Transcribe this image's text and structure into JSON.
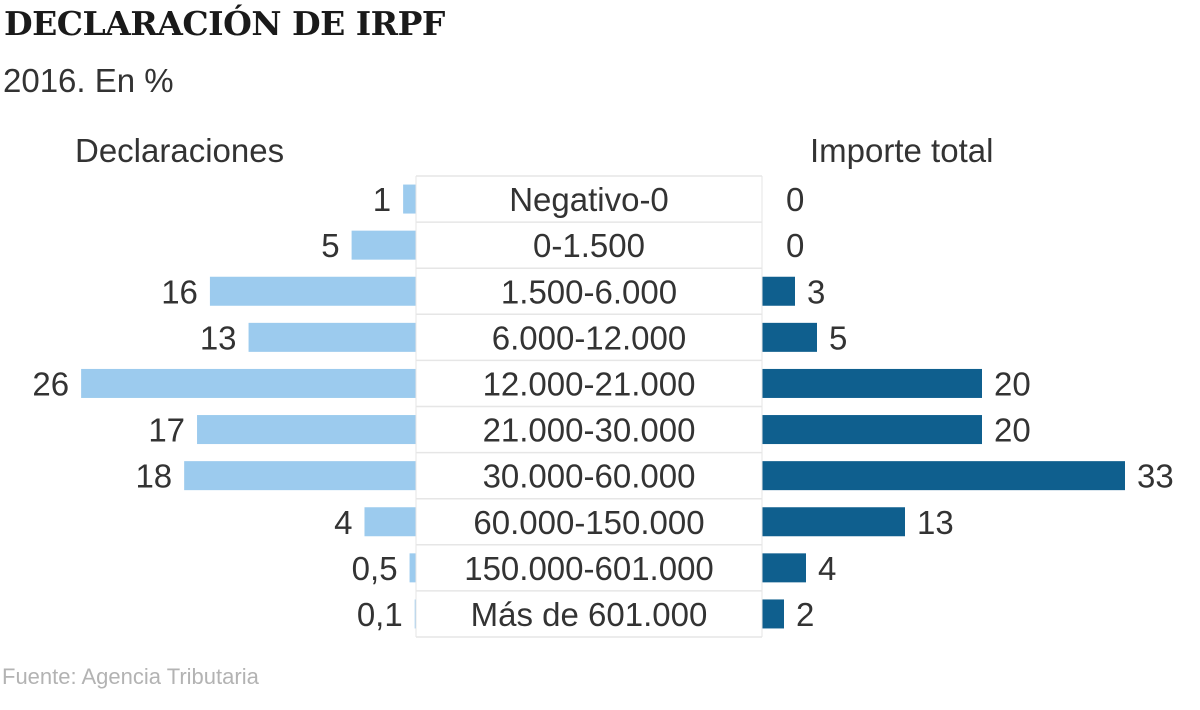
{
  "title": "DECLARACIÓN DE IRPF",
  "subtitle": "2016. En %",
  "source": "Fuente: Agencia Tributaria",
  "colors": {
    "left_bar": "#9ccbee",
    "right_bar": "#0f5f8e",
    "divider": "#e6e6e6"
  },
  "chart_data": {
    "type": "bar",
    "orientation": "horizontal-butterfly",
    "categories": [
      "Negativo-0",
      "0-1.500",
      "1.500-6.000",
      "6.000-12.000",
      "12.000-21.000",
      "21.000-30.000",
      "30.000-60.000",
      "60.000-150.000",
      "150.000-601.000",
      "Más de 601.000"
    ],
    "series": [
      {
        "name": "Declaraciones",
        "side": "left",
        "values": [
          1,
          5,
          16,
          13,
          26,
          17,
          18,
          4,
          0.5,
          0.1
        ],
        "labels": [
          "1",
          "5",
          "16",
          "13",
          "26",
          "17",
          "18",
          "4",
          "0,5",
          "0,1"
        ]
      },
      {
        "name": "Importe total",
        "side": "right",
        "values": [
          0,
          0,
          3,
          5,
          20,
          20,
          33,
          13,
          4,
          2
        ],
        "labels": [
          "0",
          "0",
          "3",
          "5",
          "20",
          "20",
          "33",
          "13",
          "4",
          "2"
        ]
      }
    ]
  }
}
